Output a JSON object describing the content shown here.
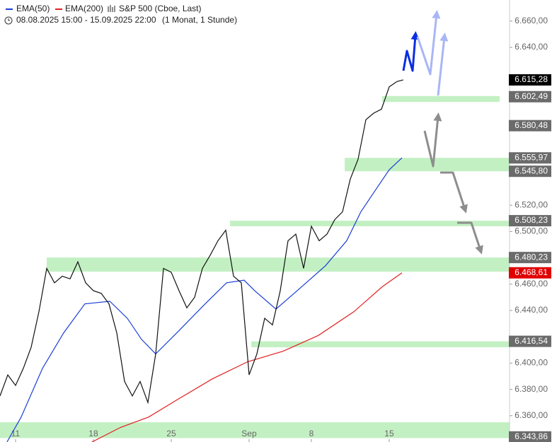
{
  "chart_data": {
    "type": "line",
    "subtitle": "08.08.2025 15:00 - 15.09.2025 22:00",
    "period": "(1 Monat, 1 Stunde)",
    "xlim": [
      0,
      32.73
    ],
    "ylim": [
      6340,
      6676
    ],
    "xticks": [
      {
        "value": 1,
        "label": "11"
      },
      {
        "value": 6,
        "label": "18"
      },
      {
        "value": 11,
        "label": "25"
      },
      {
        "value": 16,
        "label": "Sep"
      },
      {
        "value": 20,
        "label": "8"
      },
      {
        "value": 25,
        "label": "15"
      }
    ],
    "yticks": [
      {
        "value": 6360,
        "label": "6.360,00"
      },
      {
        "value": 6380,
        "label": "6.380,00"
      },
      {
        "value": 6400,
        "label": "6.400,00"
      },
      {
        "value": 6440,
        "label": "6.440,00"
      },
      {
        "value": 6460,
        "label": "6.460,00"
      },
      {
        "value": 6500,
        "label": "6.500,00"
      },
      {
        "value": 6520,
        "label": "6.520,00"
      },
      {
        "value": 6640,
        "label": "6.640,00"
      },
      {
        "value": 6660,
        "label": "6.660,00"
      }
    ],
    "series": [
      {
        "name": "EMA(50)",
        "color": "#1a3fd6",
        "x": [
          0.45,
          1.36,
          2.73,
          4.09,
          5.45,
          7.05,
          8.18,
          9.09,
          10,
          11.36,
          13.18,
          14.55,
          15.68,
          16.36,
          17.73,
          19.09,
          20.91,
          22.27,
          23.18,
          24.09,
          25,
          25.82
        ],
        "values": [
          6340,
          6359,
          6396,
          6423,
          6445,
          6447,
          6434,
          6418,
          6407,
          6423,
          6445,
          6461,
          6463,
          6455,
          6441,
          6455,
          6474,
          6493,
          6515,
          6531,
          6547,
          6556
        ]
      },
      {
        "name": "EMA(200)",
        "color": "#e02020",
        "x": [
          5.91,
          7.73,
          9.55,
          11.36,
          13.64,
          15.91,
          18.18,
          20.45,
          22.73,
          24.55,
          25.82
        ],
        "values": [
          6340,
          6351,
          6359,
          6372,
          6388,
          6401,
          6409,
          6421,
          6439,
          6458,
          6468.61
        ]
      },
      {
        "name": "S&P 500 (Cboe, Last)",
        "color": "#111111",
        "x": [
          0,
          0.5,
          1,
          1.5,
          2,
          2.5,
          3,
          3.5,
          4,
          4.5,
          5,
          5.5,
          6,
          6.5,
          7,
          7.5,
          8,
          8.5,
          9,
          9.5,
          10,
          10.5,
          11,
          11.5,
          12,
          12.5,
          13,
          13.5,
          14,
          14.5,
          15,
          15.5,
          16,
          16.5,
          17,
          17.5,
          18,
          18.5,
          19,
          19.5,
          20,
          20.5,
          21,
          21.5,
          22,
          22.5,
          23,
          23.5,
          24,
          24.5,
          25,
          25.5,
          25.9
        ],
        "values": [
          6375,
          6391,
          6383,
          6396,
          6412,
          6439,
          6472,
          6461,
          6466,
          6464,
          6477,
          6461,
          6455,
          6453,
          6445,
          6423,
          6386,
          6375,
          6386,
          6370,
          6407,
          6472,
          6469,
          6455,
          6442,
          6450,
          6472,
          6482,
          6493,
          6501,
          6466,
          6461,
          6391,
          6407,
          6434,
          6429,
          6455,
          6493,
          6498,
          6472,
          6504,
          6493,
          6498,
          6509,
          6515,
          6540,
          6555,
          6585,
          6590,
          6593,
          6610,
          6614,
          6615.28
        ]
      }
    ],
    "zones": [
      {
        "low": 6598.5,
        "high": 6603,
        "x0": 24.55,
        "x1": 32.09
      },
      {
        "low": 6545.8,
        "high": 6556,
        "x0": 22.14,
        "x1": 32.73
      },
      {
        "low": 6504,
        "high": 6508.23,
        "x0": 14.77,
        "x1": 32.73
      },
      {
        "low": 6469.5,
        "high": 6480.23,
        "x0": 3,
        "x1": 32.73
      },
      {
        "low": 6412,
        "high": 6416.54,
        "x0": 16.14,
        "x1": 32.73
      },
      {
        "low": 6343,
        "high": 6355,
        "x0": 0,
        "x1": 32.73
      }
    ],
    "price_labels": [
      {
        "value": 6615.28,
        "label": "6.615,28",
        "color": "#000000"
      },
      {
        "value": 6602.49,
        "label": "6.602,49",
        "color": "#6b6b6b"
      },
      {
        "value": 6580.48,
        "label": "6.580,48",
        "color": "#6b6b6b"
      },
      {
        "value": 6555.97,
        "label": "6.555,97",
        "color": "#6b6b6b"
      },
      {
        "value": 6545.8,
        "label": "6.545,80",
        "color": "#6b6b6b"
      },
      {
        "value": 6508.23,
        "label": "6.508,23",
        "color": "#6b6b6b"
      },
      {
        "value": 6480.23,
        "label": "6.480,23",
        "color": "#6b6b6b"
      },
      {
        "value": 6468.61,
        "label": "6.468,61",
        "color": "#e00000"
      },
      {
        "value": 6416.54,
        "label": "6.416,54",
        "color": "#6b6b6b"
      },
      {
        "value": 6343.86,
        "label": "6.343,86",
        "color": "#6b6b6b"
      }
    ]
  }
}
